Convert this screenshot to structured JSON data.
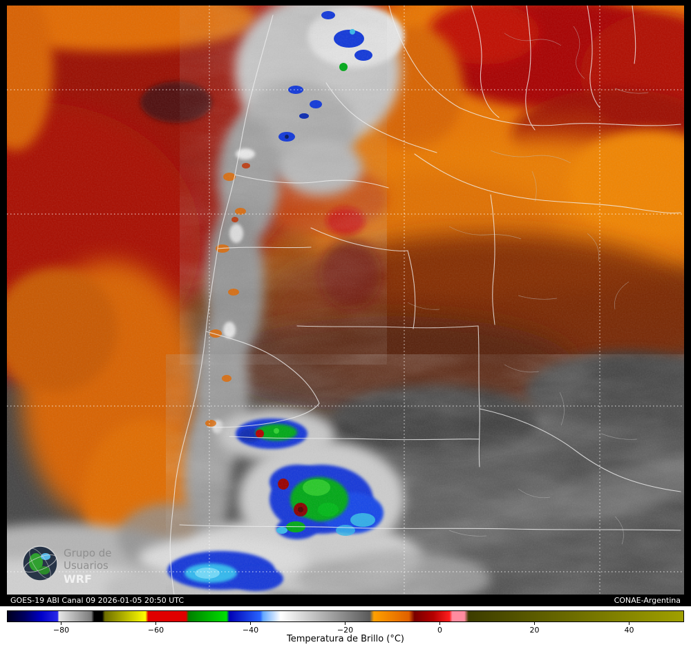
{
  "status_bar": {
    "left": "GOES-19 ABI Canal 09 2026-01-05 20:50 UTC",
    "right": "CONAE-Argentina"
  },
  "logo": {
    "line1": "Grupo de",
    "line2": "Usuarios",
    "line3": "WRF"
  },
  "legend": {
    "title": "Temperatura de Brillo (°C)",
    "ticks": [
      {
        "label": "−80",
        "pct": 7.96
      },
      {
        "label": "−60",
        "pct": 21.94
      },
      {
        "label": "−40",
        "pct": 35.92
      },
      {
        "label": "−20",
        "pct": 49.9
      },
      {
        "label": "0",
        "pct": 63.88
      },
      {
        "label": "20",
        "pct": 77.86
      },
      {
        "label": "40",
        "pct": 91.84
      }
    ],
    "value_range": {
      "min": -91,
      "max": 52,
      "units": "°C"
    },
    "gradient_stops": [
      {
        "pct": 0.0,
        "color": "#00001e"
      },
      {
        "pct": 2.5,
        "color": "#000060"
      },
      {
        "pct": 5.0,
        "color": "#0000c8"
      },
      {
        "pct": 7.4,
        "color": "#2828e8"
      },
      {
        "pct": 7.6,
        "color": "#e6e6e6"
      },
      {
        "pct": 12.4,
        "color": "#7a7a7a"
      },
      {
        "pct": 12.8,
        "color": "#000000"
      },
      {
        "pct": 14.0,
        "color": "#000000"
      },
      {
        "pct": 14.4,
        "color": "#6e6e00"
      },
      {
        "pct": 20.4,
        "color": "#ffff00"
      },
      {
        "pct": 20.8,
        "color": "#e00000"
      },
      {
        "pct": 26.4,
        "color": "#e00000"
      },
      {
        "pct": 26.8,
        "color": "#008000"
      },
      {
        "pct": 32.4,
        "color": "#00e000"
      },
      {
        "pct": 32.8,
        "color": "#0000b4"
      },
      {
        "pct": 37.4,
        "color": "#2864ff"
      },
      {
        "pct": 37.8,
        "color": "#64a8ff"
      },
      {
        "pct": 40.4,
        "color": "#ffffff"
      },
      {
        "pct": 53.6,
        "color": "#5a5a5a"
      },
      {
        "pct": 54.2,
        "color": "#ffa000"
      },
      {
        "pct": 59.4,
        "color": "#e06000"
      },
      {
        "pct": 60.2,
        "color": "#780000"
      },
      {
        "pct": 63.0,
        "color": "#b40000"
      },
      {
        "pct": 65.4,
        "color": "#ff1e1e"
      },
      {
        "pct": 65.8,
        "color": "#ff8ca0"
      },
      {
        "pct": 67.6,
        "color": "#ff8ca0"
      },
      {
        "pct": 68.2,
        "color": "#3c3c00"
      },
      {
        "pct": 100.0,
        "color": "#a0a000"
      }
    ]
  },
  "map_palette": {
    "warm_deep_red": "#9a0800",
    "warm_orange": "#e87400",
    "transition_brown": "#7c2800",
    "cold_airmass_gray": "#424242",
    "cloud_white": "#d8d8d8",
    "storm_blue": "#1238d8",
    "storm_green": "#00a818",
    "storm_cyan": "#30b8ee",
    "overshoot_red_core": "#a00000",
    "border_line": "#f0f0f0",
    "graticule": "#ffffff"
  }
}
